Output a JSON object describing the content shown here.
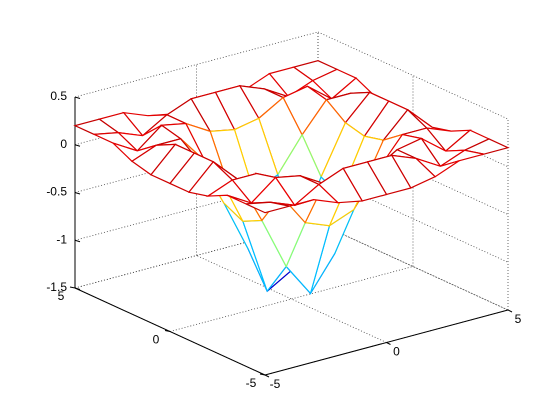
{
  "chart_data": {
    "type": "mesh",
    "x": [
      -5,
      -4,
      -3,
      -2,
      -1,
      0,
      1,
      2,
      3,
      4,
      5
    ],
    "y": [
      -5,
      -4,
      -3,
      -2,
      -1,
      0,
      1,
      2,
      3,
      4,
      5
    ],
    "z": [
      [
        0.2,
        0.2,
        0.2,
        0.1,
        0.05,
        0.05,
        0.05,
        0.1,
        0.2,
        0.2,
        0.2
      ],
      [
        0.2,
        0.15,
        0.05,
        0.2,
        0.3,
        0.3,
        0.3,
        0.2,
        0.05,
        0.15,
        0.2
      ],
      [
        0.2,
        0.05,
        0.25,
        0.2,
        0.05,
        0.0,
        0.05,
        0.2,
        0.25,
        0.05,
        0.2
      ],
      [
        0.1,
        0.2,
        0.2,
        -0.1,
        -0.45,
        -0.55,
        -0.45,
        -0.1,
        0.2,
        0.2,
        0.1
      ],
      [
        0.05,
        0.3,
        0.05,
        -0.45,
        -1.0,
        -1.35,
        -1.0,
        -0.45,
        0.05,
        0.3,
        0.05
      ],
      [
        0.05,
        0.3,
        0.0,
        -0.55,
        -1.35,
        -1.2,
        -1.35,
        -0.55,
        0.0,
        0.3,
        0.05
      ],
      [
        0.05,
        0.3,
        0.05,
        -0.45,
        -1.0,
        -1.35,
        -1.0,
        -0.45,
        0.05,
        0.3,
        0.05
      ],
      [
        0.1,
        0.2,
        0.2,
        -0.1,
        -0.45,
        -0.55,
        -0.45,
        -0.1,
        0.2,
        0.2,
        0.1
      ],
      [
        0.2,
        0.05,
        0.25,
        0.2,
        0.05,
        0.0,
        0.05,
        0.2,
        0.25,
        0.05,
        0.2
      ],
      [
        0.2,
        0.15,
        0.05,
        0.2,
        0.3,
        0.3,
        0.3,
        0.2,
        0.05,
        0.15,
        0.2
      ],
      [
        0.2,
        0.2,
        0.2,
        0.1,
        0.05,
        0.05,
        0.05,
        0.1,
        0.2,
        0.2,
        0.2
      ]
    ],
    "xlim": [
      -5,
      5
    ],
    "ylim": [
      -5,
      5
    ],
    "zlim": [
      -1.5,
      0.5
    ],
    "xticks": [
      -5,
      0,
      5
    ],
    "yticks": [
      -5,
      0,
      5
    ],
    "zticks": [
      -1.5,
      -1,
      -0.5,
      0,
      0.5
    ],
    "colormap": "jet",
    "grid": true
  }
}
